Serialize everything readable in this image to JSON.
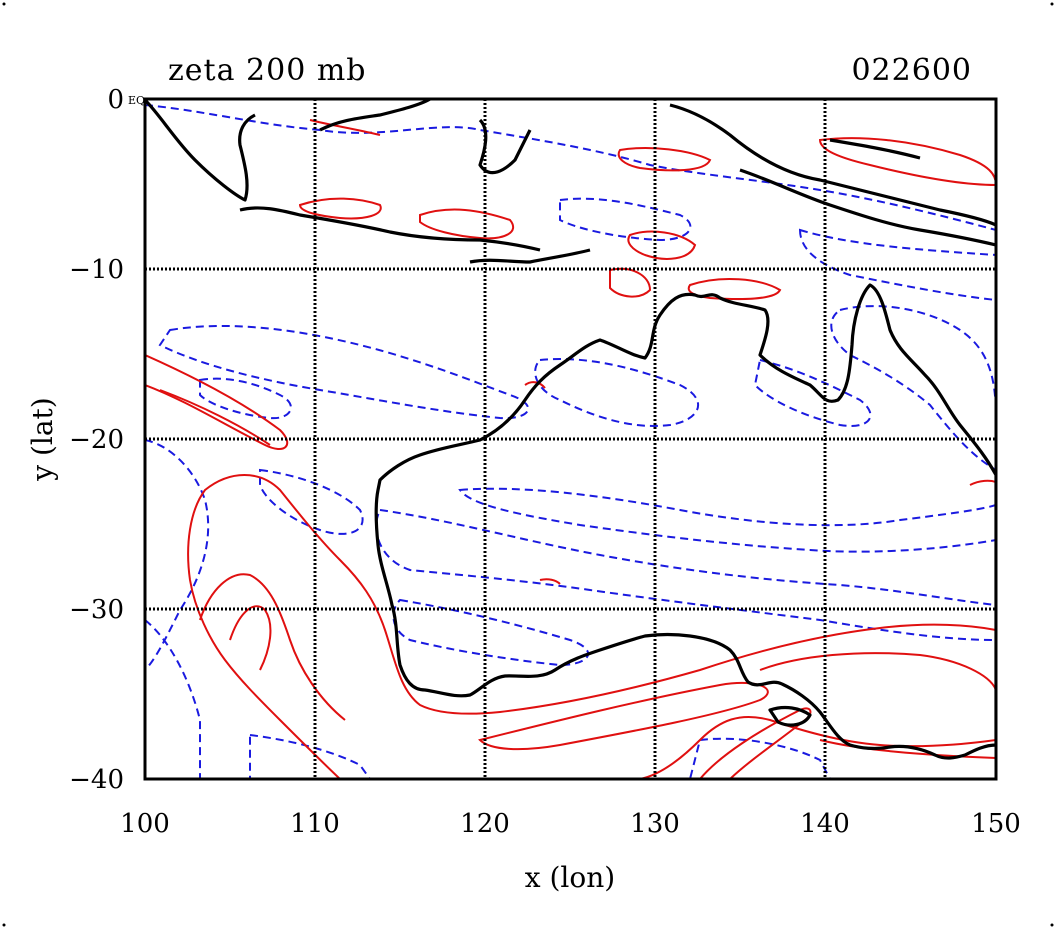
{
  "header": {
    "title": "zeta 200 mb",
    "timestamp": "022600",
    "corner_label": "EQ"
  },
  "axes": {
    "xlabel": "x (lon)",
    "ylabel": "y (lat)",
    "xlim": [
      100,
      150
    ],
    "ylim": [
      -40,
      0
    ],
    "xticks": [
      "100",
      "110",
      "120",
      "130",
      "140",
      "150"
    ],
    "yticks": [
      "0",
      "−10",
      "−20",
      "−30",
      "−40"
    ],
    "grid": true
  },
  "colors": {
    "positive_fill": "#f7c7c7",
    "positive_line": "#e01010",
    "negative_fill": "#b0b0f5",
    "negative_line": "#1a1ae0",
    "coastline": "#000000"
  }
}
